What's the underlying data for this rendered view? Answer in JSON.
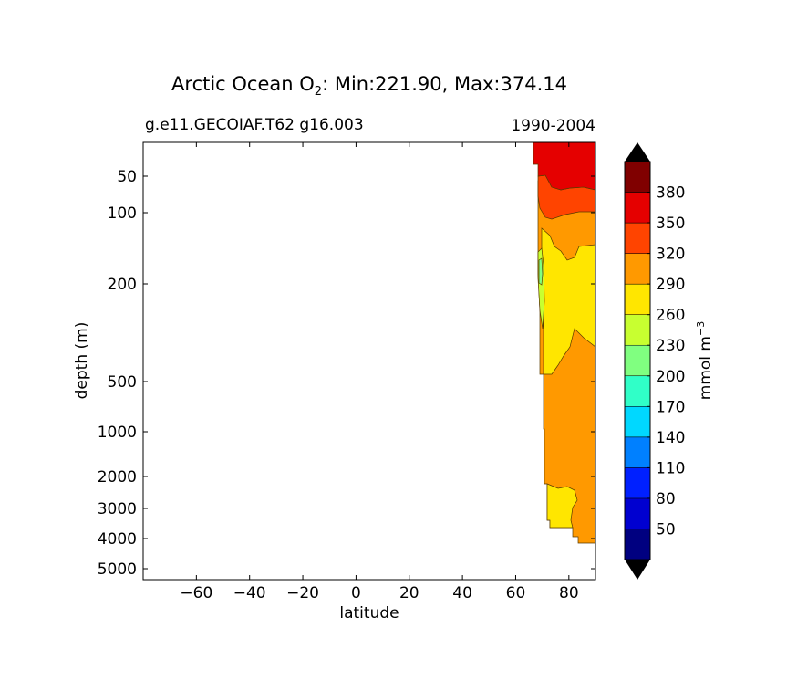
{
  "chart_data": {
    "type": "contour",
    "title_main": "Arctic Ocean O",
    "title_sub": "2",
    "title_rest": ": Min:221.90, Max:374.14",
    "subtitle_left": "g.e11.GECOIAF.T62 g16.003",
    "subtitle_right": "1990-2004",
    "xlabel": "latitude",
    "ylabel": "depth (m)",
    "x_ticks": [
      "−60",
      "−40",
      "−20",
      "0",
      "20",
      "40",
      "60",
      "80"
    ],
    "x_tick_values": [
      -60,
      -40,
      -20,
      0,
      20,
      40,
      60,
      80
    ],
    "xlim": [
      -80,
      90
    ],
    "y_ticks": [
      "50",
      "100",
      "200",
      "500",
      "1000",
      "2000",
      "3000",
      "4000",
      "5000"
    ],
    "y_tick_values": [
      50,
      100,
      200,
      500,
      1000,
      2000,
      3000,
      4000,
      5000
    ],
    "y_axis_inverted": true,
    "colorbar": {
      "label": "mmol m",
      "label_exp": "−3",
      "levels": [
        20,
        50,
        80,
        110,
        140,
        170,
        200,
        230,
        260,
        290,
        320,
        350,
        380,
        410
      ],
      "tick_labels": [
        "50",
        "80",
        "110",
        "140",
        "170",
        "200",
        "230",
        "260",
        "290",
        "320",
        "350",
        "380"
      ],
      "colors": [
        "#000080",
        "#0000d0",
        "#0020ff",
        "#0080ff",
        "#00d8ff",
        "#30ffc8",
        "#80ff80",
        "#c8ff30",
        "#ffe600",
        "#ff9900",
        "#ff4400",
        "#e50000",
        "#800000"
      ],
      "extend": "both",
      "under_color": "#000000",
      "over_color": "#000000"
    },
    "regions": [
      {
        "range": "350-380",
        "color": "#e50000",
        "approx_latitude": [
          66,
          90
        ],
        "approx_depth_m": [
          25,
          80
        ]
      },
      {
        "range": "320-350",
        "color": "#ff4400",
        "approx_latitude": [
          68,
          90
        ],
        "approx_depth_m": [
          60,
          110
        ]
      },
      {
        "range": "290-320",
        "color": "#ff9900",
        "approx_latitude": [
          68,
          90
        ],
        "approx_depth_m": [
          80,
          4200
        ]
      },
      {
        "range": "260-290",
        "color": "#ffe600",
        "approx_latitude": [
          68,
          90
        ],
        "approx_depth_m": [
          130,
          3700
        ]
      },
      {
        "range": "230-260",
        "color": "#c8ff30",
        "approx_latitude": [
          68,
          70
        ],
        "approx_depth_m": [
          150,
          350
        ]
      },
      {
        "range": "200-230",
        "color": "#80ff80",
        "approx_latitude": [
          68,
          70
        ],
        "approx_depth_m": [
          170,
          250
        ]
      }
    ]
  }
}
